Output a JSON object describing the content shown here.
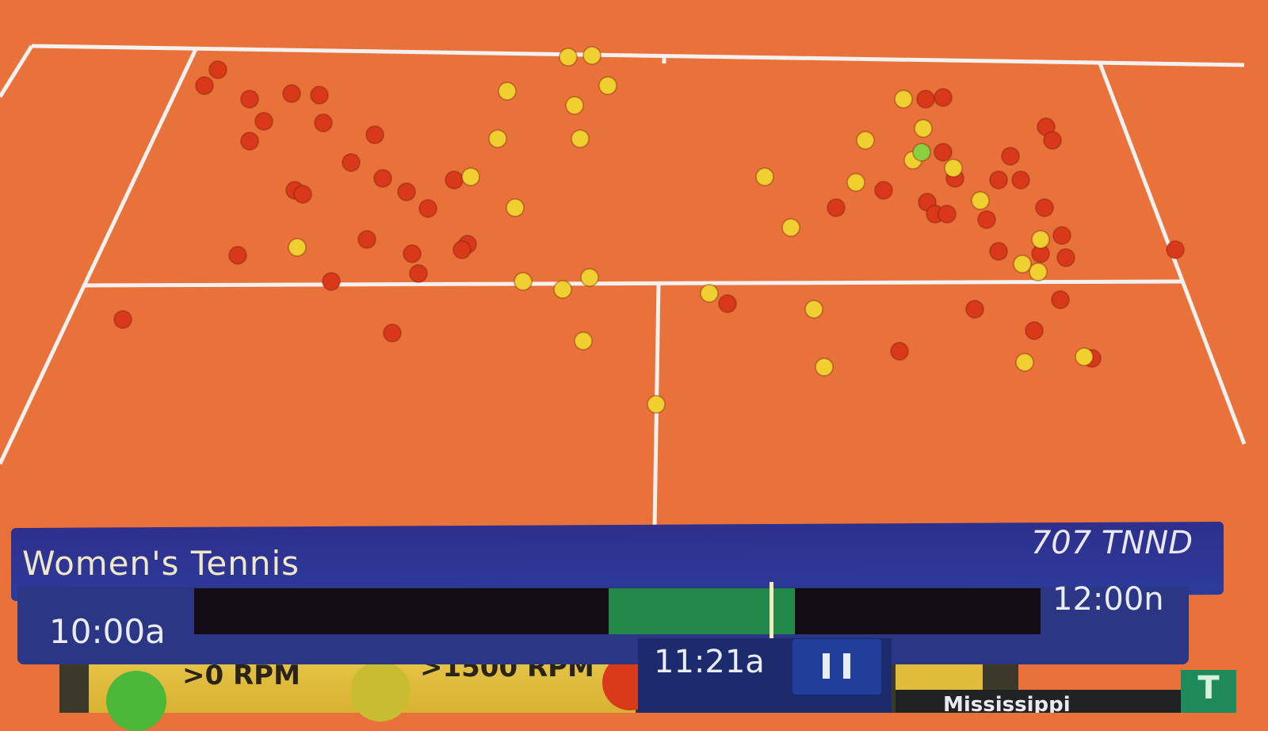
{
  "court": {
    "surface_color": "#e8723a",
    "line_color": "#f4f0ee",
    "ball_colors": {
      "red": "#d9381a",
      "yellow": "#f0d030",
      "green": "#8bd040"
    }
  },
  "legend": {
    "items": [
      {
        "label": ">0 RPM",
        "color": "#4cb83a"
      },
      {
        "label": ">1500 RPM",
        "color": "#d8cc30"
      },
      {
        "label": "",
        "color": "#d93a1a"
      }
    ]
  },
  "info_banner": {
    "title": "Women's Tennis",
    "channel": "707 TNND",
    "start_time": "10:00a",
    "end_time": "12:00n",
    "current_time": "11:21a",
    "buffer_start_fraction": 0.49,
    "buffer_end_fraction": 0.71,
    "playhead_fraction": 0.68,
    "pause_icon": "pause-icon"
  },
  "ticker": {
    "text": "Mississippi"
  },
  "colors": {
    "banner": "#2c3b9a",
    "buffer": "#23894a"
  }
}
